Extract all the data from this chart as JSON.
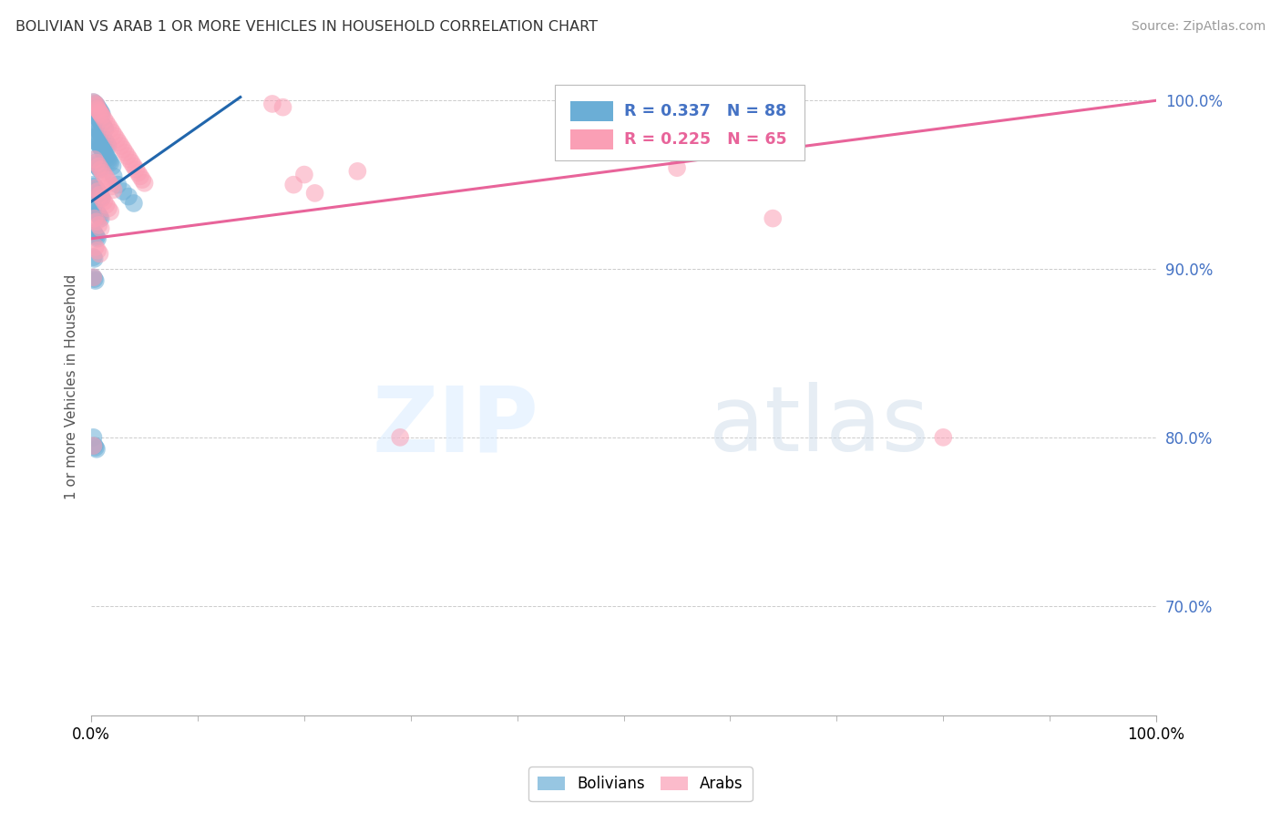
{
  "title": "BOLIVIAN VS ARAB 1 OR MORE VEHICLES IN HOUSEHOLD CORRELATION CHART",
  "source": "Source: ZipAtlas.com",
  "ylabel": "1 or more Vehicles in Household",
  "xlim": [
    0.0,
    1.0
  ],
  "ylim": [
    0.635,
    1.025
  ],
  "yticks": [
    0.7,
    0.8,
    0.9,
    1.0
  ],
  "ytick_labels": [
    "70.0%",
    "80.0%",
    "90.0%",
    "100.0%"
  ],
  "blue_label": "Bolivians",
  "pink_label": "Arabs",
  "blue_r": "R = 0.337",
  "blue_n": "N = 88",
  "pink_r": "R = 0.225",
  "pink_n": "N = 65",
  "blue_color": "#6baed6",
  "pink_color": "#fa9fb5",
  "blue_line_color": "#2166ac",
  "pink_line_color": "#e8649a",
  "watermark_zip": "ZIP",
  "watermark_atlas": "atlas",
  "blue_trend": {
    "x_start": 0.0,
    "y_start": 0.94,
    "x_end": 0.14,
    "y_end": 1.002
  },
  "pink_trend": {
    "x_start": 0.0,
    "y_start": 0.918,
    "x_end": 1.0,
    "y_end": 1.0
  },
  "blue_points": [
    [
      0.002,
      0.999
    ],
    [
      0.004,
      0.998
    ],
    [
      0.005,
      0.997
    ],
    [
      0.006,
      0.996
    ],
    [
      0.007,
      0.995
    ],
    [
      0.008,
      0.994
    ],
    [
      0.009,
      0.993
    ],
    [
      0.01,
      0.992
    ],
    [
      0.003,
      0.993
    ],
    [
      0.005,
      0.991
    ],
    [
      0.006,
      0.99
    ],
    [
      0.007,
      0.989
    ],
    [
      0.008,
      0.988
    ],
    [
      0.009,
      0.987
    ],
    [
      0.01,
      0.986
    ],
    [
      0.011,
      0.985
    ],
    [
      0.012,
      0.984
    ],
    [
      0.013,
      0.983
    ],
    [
      0.004,
      0.985
    ],
    [
      0.006,
      0.983
    ],
    [
      0.007,
      0.982
    ],
    [
      0.008,
      0.981
    ],
    [
      0.009,
      0.98
    ],
    [
      0.01,
      0.979
    ],
    [
      0.011,
      0.978
    ],
    [
      0.012,
      0.977
    ],
    [
      0.013,
      0.976
    ],
    [
      0.014,
      0.975
    ],
    [
      0.015,
      0.974
    ],
    [
      0.016,
      0.973
    ],
    [
      0.003,
      0.978
    ],
    [
      0.005,
      0.976
    ],
    [
      0.006,
      0.975
    ],
    [
      0.007,
      0.974
    ],
    [
      0.008,
      0.973
    ],
    [
      0.009,
      0.972
    ],
    [
      0.01,
      0.971
    ],
    [
      0.011,
      0.97
    ],
    [
      0.012,
      0.969
    ],
    [
      0.013,
      0.968
    ],
    [
      0.014,
      0.967
    ],
    [
      0.015,
      0.966
    ],
    [
      0.016,
      0.965
    ],
    [
      0.017,
      0.964
    ],
    [
      0.018,
      0.963
    ],
    [
      0.02,
      0.961
    ],
    [
      0.002,
      0.965
    ],
    [
      0.004,
      0.963
    ],
    [
      0.005,
      0.962
    ],
    [
      0.006,
      0.961
    ],
    [
      0.007,
      0.96
    ],
    [
      0.008,
      0.959
    ],
    [
      0.002,
      0.95
    ],
    [
      0.003,
      0.949
    ],
    [
      0.004,
      0.948
    ],
    [
      0.005,
      0.947
    ],
    [
      0.006,
      0.946
    ],
    [
      0.007,
      0.945
    ],
    [
      0.008,
      0.944
    ],
    [
      0.009,
      0.943
    ],
    [
      0.01,
      0.942
    ],
    [
      0.002,
      0.937
    ],
    [
      0.003,
      0.936
    ],
    [
      0.004,
      0.935
    ],
    [
      0.005,
      0.934
    ],
    [
      0.006,
      0.933
    ],
    [
      0.007,
      0.932
    ],
    [
      0.008,
      0.931
    ],
    [
      0.009,
      0.93
    ],
    [
      0.002,
      0.922
    ],
    [
      0.003,
      0.921
    ],
    [
      0.004,
      0.92
    ],
    [
      0.005,
      0.919
    ],
    [
      0.006,
      0.918
    ],
    [
      0.021,
      0.955
    ],
    [
      0.025,
      0.95
    ],
    [
      0.03,
      0.946
    ],
    [
      0.035,
      0.943
    ],
    [
      0.04,
      0.939
    ],
    [
      0.002,
      0.907
    ],
    [
      0.003,
      0.906
    ],
    [
      0.002,
      0.895
    ],
    [
      0.003,
      0.894
    ],
    [
      0.004,
      0.893
    ],
    [
      0.002,
      0.8
    ],
    [
      0.003,
      0.795
    ],
    [
      0.004,
      0.794
    ],
    [
      0.005,
      0.793
    ]
  ],
  "pink_points": [
    [
      0.002,
      0.999
    ],
    [
      0.004,
      0.998
    ],
    [
      0.005,
      0.997
    ],
    [
      0.17,
      0.998
    ],
    [
      0.006,
      0.995
    ],
    [
      0.007,
      0.994
    ],
    [
      0.008,
      0.993
    ],
    [
      0.009,
      0.992
    ],
    [
      0.01,
      0.991
    ],
    [
      0.18,
      0.996
    ],
    [
      0.012,
      0.989
    ],
    [
      0.014,
      0.987
    ],
    [
      0.016,
      0.985
    ],
    [
      0.018,
      0.983
    ],
    [
      0.02,
      0.981
    ],
    [
      0.022,
      0.979
    ],
    [
      0.024,
      0.977
    ],
    [
      0.026,
      0.975
    ],
    [
      0.028,
      0.973
    ],
    [
      0.03,
      0.971
    ],
    [
      0.032,
      0.969
    ],
    [
      0.034,
      0.967
    ],
    [
      0.036,
      0.965
    ],
    [
      0.038,
      0.963
    ],
    [
      0.04,
      0.961
    ],
    [
      0.042,
      0.959
    ],
    [
      0.044,
      0.957
    ],
    [
      0.046,
      0.955
    ],
    [
      0.048,
      0.953
    ],
    [
      0.05,
      0.951
    ],
    [
      0.003,
      0.965
    ],
    [
      0.005,
      0.963
    ],
    [
      0.007,
      0.961
    ],
    [
      0.009,
      0.959
    ],
    [
      0.011,
      0.957
    ],
    [
      0.013,
      0.955
    ],
    [
      0.015,
      0.953
    ],
    [
      0.017,
      0.951
    ],
    [
      0.019,
      0.949
    ],
    [
      0.021,
      0.947
    ],
    [
      0.004,
      0.948
    ],
    [
      0.006,
      0.946
    ],
    [
      0.008,
      0.944
    ],
    [
      0.01,
      0.942
    ],
    [
      0.012,
      0.94
    ],
    [
      0.014,
      0.938
    ],
    [
      0.016,
      0.936
    ],
    [
      0.018,
      0.934
    ],
    [
      0.003,
      0.93
    ],
    [
      0.005,
      0.928
    ],
    [
      0.007,
      0.926
    ],
    [
      0.009,
      0.924
    ],
    [
      0.2,
      0.956
    ],
    [
      0.25,
      0.958
    ],
    [
      0.004,
      0.913
    ],
    [
      0.006,
      0.911
    ],
    [
      0.008,
      0.909
    ],
    [
      0.002,
      0.895
    ],
    [
      0.55,
      0.96
    ],
    [
      0.64,
      0.93
    ],
    [
      0.19,
      0.95
    ],
    [
      0.21,
      0.945
    ],
    [
      0.002,
      0.795
    ],
    [
      0.29,
      0.8
    ],
    [
      0.8,
      0.8
    ]
  ]
}
